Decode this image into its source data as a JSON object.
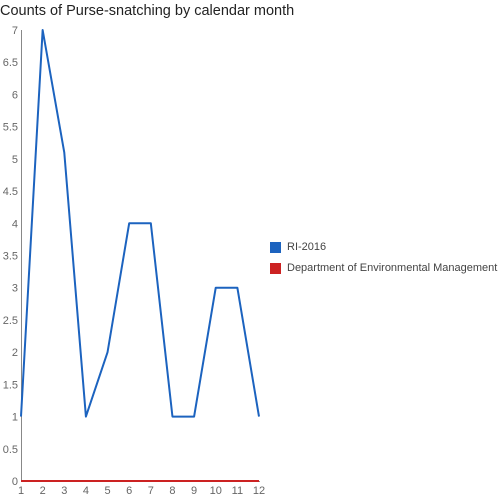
{
  "chart_data": {
    "type": "line",
    "title": "Counts of Purse-snatching by calendar month",
    "x": [
      1,
      2,
      3,
      4,
      5,
      6,
      7,
      8,
      9,
      10,
      11,
      12
    ],
    "x_tick_labels": [
      "1",
      "2",
      "3",
      "4",
      "5",
      "6",
      "7",
      "8",
      "9",
      "10",
      "11",
      "12"
    ],
    "y_tick_labels": [
      "0",
      "0.5",
      "1",
      "1.5",
      "2",
      "2.5",
      "3",
      "3.5",
      "4",
      "4.5",
      "5",
      "5.5",
      "6",
      "6.5",
      "7"
    ],
    "ylim": [
      0,
      7
    ],
    "grid": false,
    "legend_position": "right",
    "series": [
      {
        "name": "RI-2016",
        "color": "#1c63bf",
        "values": [
          1,
          7,
          5.1,
          1,
          2,
          4,
          4,
          1,
          1,
          3,
          3,
          1
        ]
      },
      {
        "name": "Department of Environmental Management",
        "color": "#cc2222",
        "values": [
          0,
          0,
          0,
          0,
          0,
          0,
          0,
          0,
          0,
          0,
          0,
          0
        ]
      }
    ]
  }
}
